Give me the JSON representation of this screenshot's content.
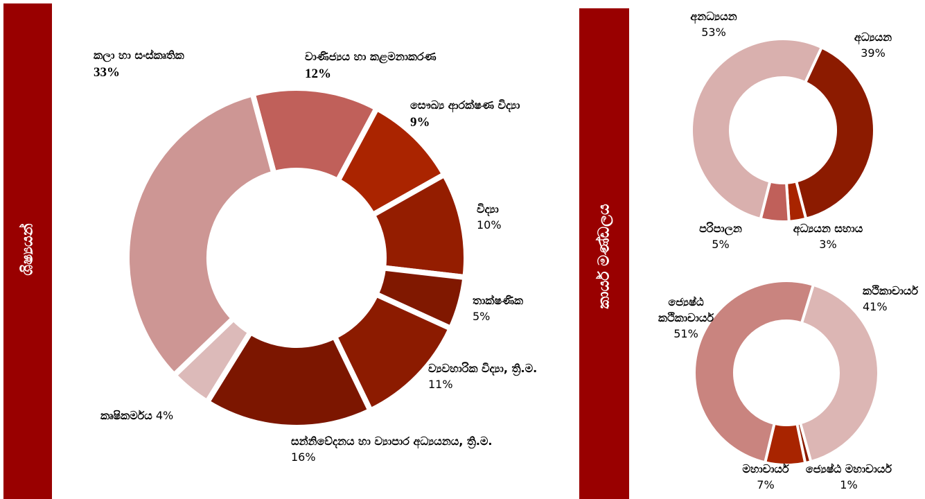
{
  "sections": [
    "ශිෂ්‍යයන්",
    "කාර්ය මණ්ඩලය"
  ],
  "chart_data": [
    {
      "type": "donut",
      "categories": [
        "වාණිජ්‍යය හා කළමනාකරණ",
        "සෞඛ්‍ය ආරක්ෂණ විද්‍යා",
        "විද්‍යා",
        "තාක්ෂණික",
        "ව්‍යවහාරික විද්‍යා, ත්‍රි.ම.",
        "සන්නිවේදනය හා ව්‍යාපාර අධ්‍යයනය, ත්‍රි.ම.",
        "කෘෂිකර්මය",
        "කලා හා සංස්කෘතික"
      ],
      "values": [
        12,
        9,
        10,
        5,
        11,
        16,
        4,
        33
      ],
      "value_labels": [
        "12%",
        "9%",
        "10%",
        "5%",
        "11%",
        "16%",
        "4%",
        "33%"
      ],
      "colors": [
        "#c0605a",
        "#aa2400",
        "#941d00",
        "#801800",
        "#8c1b00",
        "#7c1600",
        "#dcbab9",
        "#cd9694"
      ]
    },
    {
      "type": "donut",
      "categories": [
        "අධ්‍යයන",
        "අධ්‍යයන සහාය",
        "පරිපාලන",
        "අනධ්‍යයන"
      ],
      "values": [
        39,
        3,
        5,
        53
      ],
      "value_labels": [
        "39%",
        "3%",
        "5%",
        "53%"
      ],
      "colors": [
        "#8c1b00",
        "#a82400",
        "#c0605a",
        "#d9b0ae"
      ]
    },
    {
      "type": "donut",
      "categories": [
        "කථිකාචාර්ය",
        "ජ්‍යෙෂ්ඨ මහාචාර්ය",
        "මහාචාර්ය",
        "ජ්‍යෙෂ්ඨ කථිකාචාර්ය"
      ],
      "values": [
        41,
        1,
        7,
        51
      ],
      "value_labels": [
        "41%",
        "1%",
        "7%",
        "51%"
      ],
      "colors": [
        "#dcb6b4",
        "#8c1b00",
        "#a82400",
        "#c9847f"
      ]
    }
  ]
}
